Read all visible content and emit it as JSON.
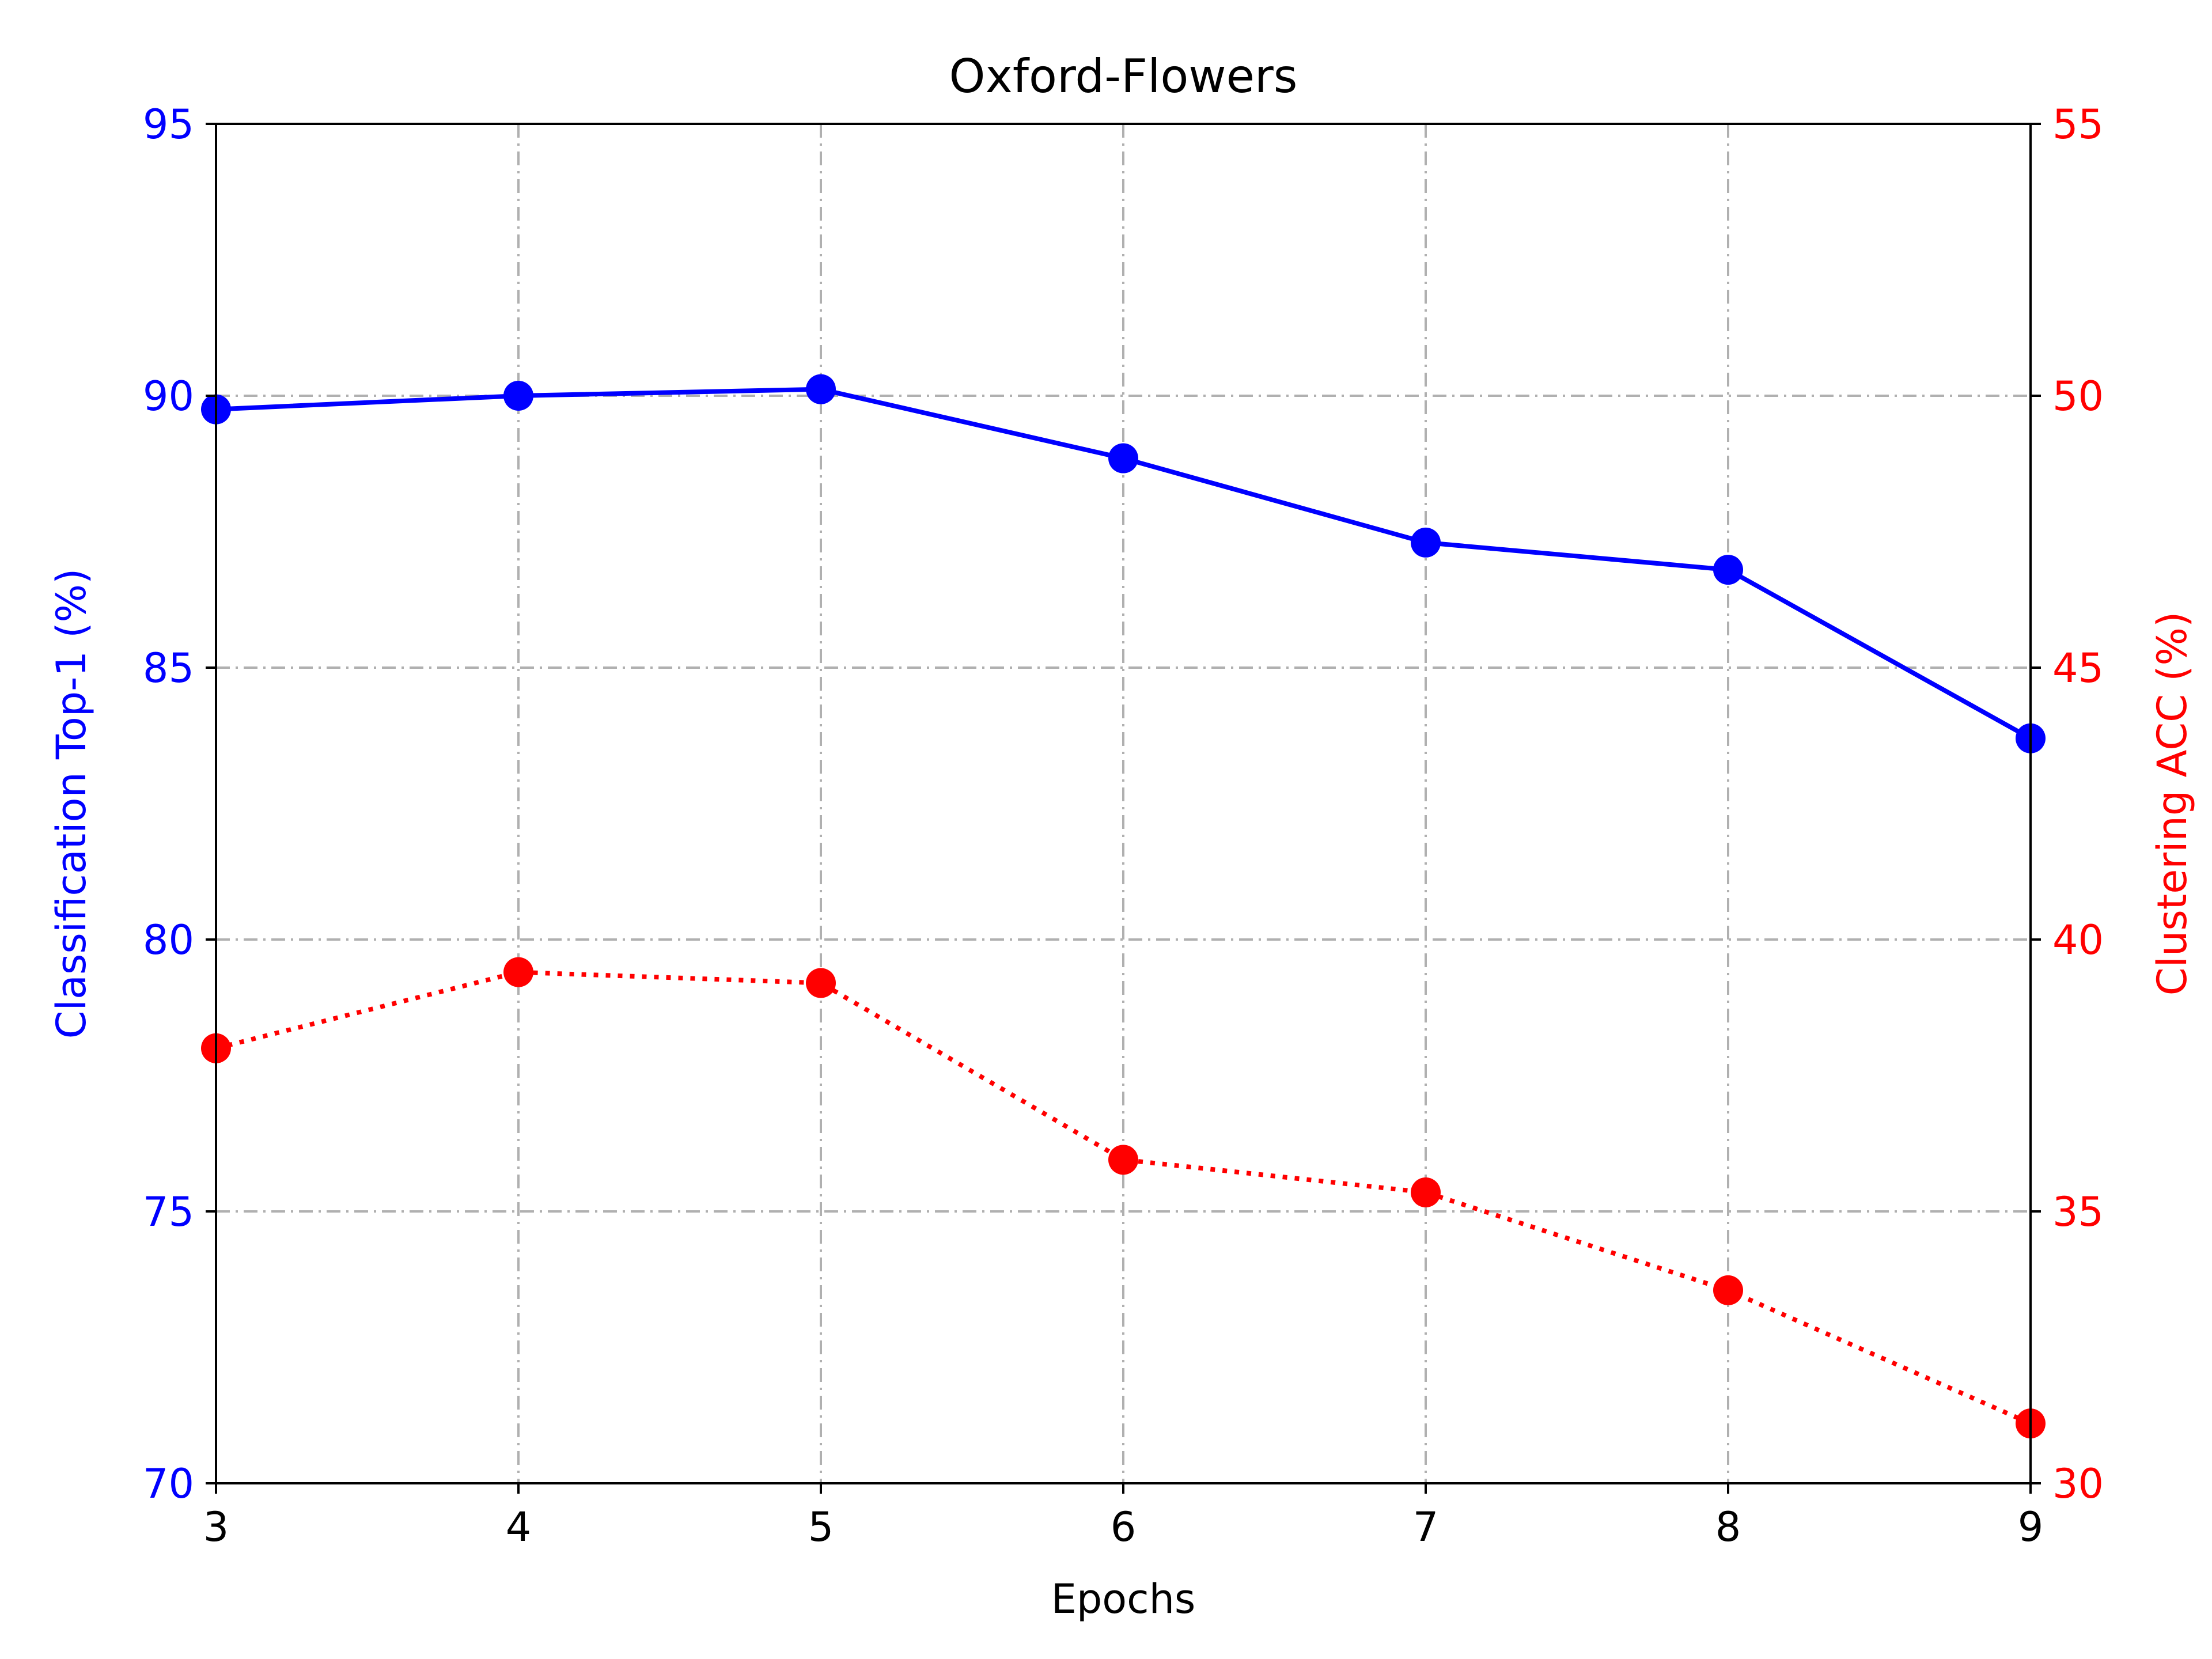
{
  "chart_data": {
    "type": "line",
    "title": "Oxford-Flowers",
    "xlabel": "Epochs",
    "ylabel_left": "Classification Top-1 (%)",
    "ylabel_right": "Clustering ACC (%)",
    "x": [
      3,
      4,
      5,
      6,
      7,
      8,
      9
    ],
    "xlim": [
      3,
      9
    ],
    "ylim_left": [
      70,
      95
    ],
    "ylim_right": [
      30,
      55
    ],
    "xticks": [
      "3",
      "4",
      "5",
      "6",
      "7",
      "8",
      "9"
    ],
    "yticks_left": [
      "70",
      "75",
      "80",
      "85",
      "90",
      "95"
    ],
    "yticks_right": [
      "30",
      "35",
      "40",
      "45",
      "50",
      "55"
    ],
    "grid": true,
    "series": [
      {
        "axis": "left",
        "color": "#0000ff",
        "line_style": "solid",
        "marker": "circle",
        "values": [
          89.75,
          90.0,
          90.12,
          88.85,
          87.3,
          86.8,
          83.7
        ]
      },
      {
        "axis": "right",
        "color": "#ff0000",
        "line_style": "dotted",
        "marker": "circle",
        "values": [
          38.0,
          39.4,
          39.2,
          35.95,
          35.35,
          33.55,
          31.1
        ]
      }
    ]
  }
}
